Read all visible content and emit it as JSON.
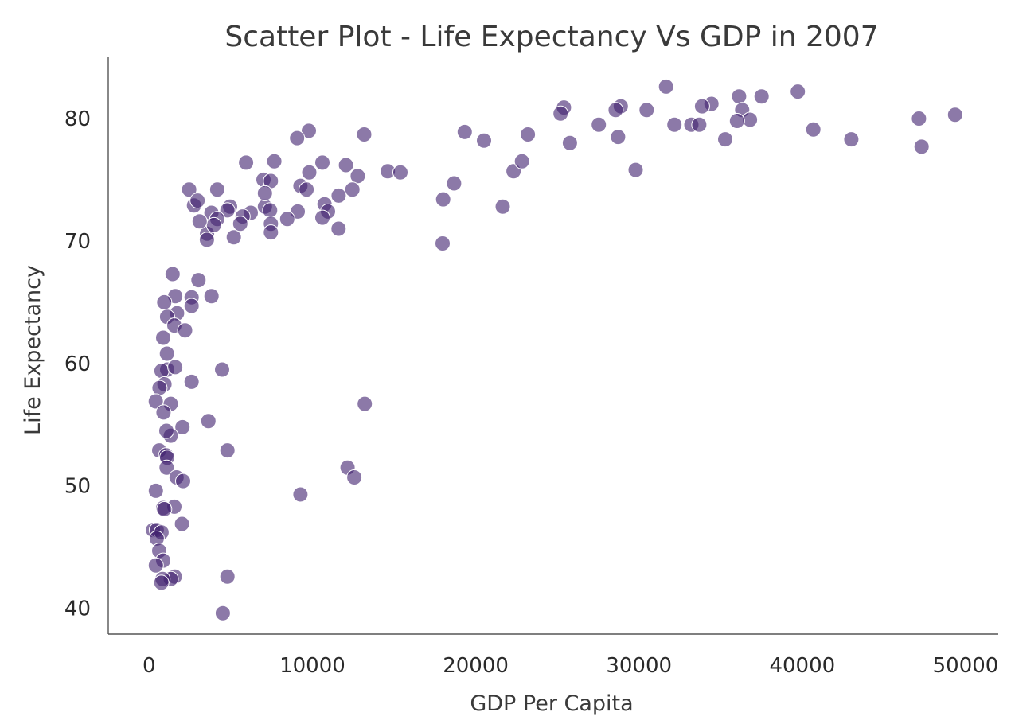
{
  "chart_data": {
    "type": "scatter",
    "title": "Scatter Plot - Life Expectancy Vs GDP in 2007",
    "xlabel": "GDP Per Capita",
    "ylabel": "Life Expectancy",
    "xlim": [
      -2500,
      52000
    ],
    "ylim": [
      37.9,
      85.0
    ],
    "xticks": [
      0,
      10000,
      20000,
      30000,
      40000,
      50000
    ],
    "yticks": [
      40,
      50,
      60,
      70,
      80
    ],
    "xtick_labels": [
      "0",
      "10000",
      "20000",
      "30000",
      "40000",
      "50000"
    ],
    "ytick_labels": [
      "40",
      "50",
      "60",
      "70",
      "80"
    ],
    "grid": false,
    "marker_color": "#3f1f6e",
    "points": [
      {
        "x": 31656,
        "y": 82.6
      },
      {
        "x": 39724,
        "y": 82.2
      },
      {
        "x": 36126,
        "y": 81.8
      },
      {
        "x": 37506,
        "y": 81.8
      },
      {
        "x": 34435,
        "y": 81.2
      },
      {
        "x": 33860,
        "y": 81.0
      },
      {
        "x": 28883,
        "y": 81.0
      },
      {
        "x": 25405,
        "y": 80.9
      },
      {
        "x": 36319,
        "y": 80.7
      },
      {
        "x": 30470,
        "y": 80.7
      },
      {
        "x": 28570,
        "y": 80.7
      },
      {
        "x": 25200,
        "y": 80.4
      },
      {
        "x": 49357,
        "y": 80.3
      },
      {
        "x": 47143,
        "y": 80.0
      },
      {
        "x": 36798,
        "y": 79.9
      },
      {
        "x": 36000,
        "y": 79.8
      },
      {
        "x": 33207,
        "y": 79.5
      },
      {
        "x": 33692,
        "y": 79.5
      },
      {
        "x": 32170,
        "y": 79.5
      },
      {
        "x": 27538,
        "y": 79.5
      },
      {
        "x": 40676,
        "y": 79.1
      },
      {
        "x": 19328,
        "y": 78.9
      },
      {
        "x": 23196,
        "y": 78.7
      },
      {
        "x": 28718,
        "y": 78.5
      },
      {
        "x": 43000,
        "y": 78.3
      },
      {
        "x": 35278,
        "y": 78.3
      },
      {
        "x": 20510,
        "y": 78.2
      },
      {
        "x": 25768,
        "y": 78.0
      },
      {
        "x": 47308,
        "y": 77.7
      },
      {
        "x": 29796,
        "y": 75.8
      },
      {
        "x": 22316,
        "y": 75.7
      },
      {
        "x": 22833,
        "y": 76.5
      },
      {
        "x": 14618,
        "y": 75.7
      },
      {
        "x": 15389,
        "y": 75.6
      },
      {
        "x": 18678,
        "y": 74.7
      },
      {
        "x": 18009,
        "y": 73.4
      },
      {
        "x": 21655,
        "y": 72.8
      },
      {
        "x": 17974,
        "y": 69.8
      },
      {
        "x": 9786,
        "y": 79.0
      },
      {
        "x": 9065,
        "y": 78.4
      },
      {
        "x": 13172,
        "y": 78.7
      },
      {
        "x": 10611,
        "y": 76.4
      },
      {
        "x": 12057,
        "y": 76.2
      },
      {
        "x": 7670,
        "y": 76.5
      },
      {
        "x": 5937,
        "y": 76.4
      },
      {
        "x": 9809,
        "y": 75.6
      },
      {
        "x": 12779,
        "y": 75.3
      },
      {
        "x": 7006,
        "y": 75.0
      },
      {
        "x": 7459,
        "y": 74.9
      },
      {
        "x": 9269,
        "y": 74.5
      },
      {
        "x": 9645,
        "y": 74.2
      },
      {
        "x": 12451,
        "y": 74.2
      },
      {
        "x": 11606,
        "y": 73.7
      },
      {
        "x": 10747,
        "y": 73.0
      },
      {
        "x": 7093,
        "y": 72.8
      },
      {
        "x": 7408,
        "y": 72.5
      },
      {
        "x": 9100,
        "y": 72.4
      },
      {
        "x": 10956,
        "y": 72.4
      },
      {
        "x": 6224,
        "y": 72.3
      },
      {
        "x": 5728,
        "y": 72.0
      },
      {
        "x": 8459,
        "y": 71.8
      },
      {
        "x": 10611,
        "y": 71.9
      },
      {
        "x": 7458,
        "y": 71.4
      },
      {
        "x": 11605,
        "y": 71.0
      },
      {
        "x": 7459,
        "y": 70.7
      },
      {
        "x": 7092,
        "y": 73.9
      },
      {
        "x": 5186,
        "y": 70.3
      },
      {
        "x": 4959,
        "y": 72.8
      },
      {
        "x": 5581,
        "y": 71.4
      },
      {
        "x": 4797,
        "y": 72.5
      },
      {
        "x": 4172,
        "y": 74.2
      },
      {
        "x": 2452,
        "y": 74.2
      },
      {
        "x": 2749,
        "y": 72.9
      },
      {
        "x": 3820,
        "y": 72.3
      },
      {
        "x": 4173,
        "y": 71.8
      },
      {
        "x": 3548,
        "y": 70.6
      },
      {
        "x": 3970,
        "y": 71.3
      },
      {
        "x": 3095,
        "y": 71.6
      },
      {
        "x": 3540,
        "y": 70.1
      },
      {
        "x": 2970,
        "y": 73.3
      },
      {
        "x": 1441,
        "y": 67.3
      },
      {
        "x": 3025,
        "y": 66.8
      },
      {
        "x": 3821,
        "y": 65.5
      },
      {
        "x": 1598,
        "y": 65.5
      },
      {
        "x": 926,
        "y": 65.0
      },
      {
        "x": 2605,
        "y": 65.4
      },
      {
        "x": 2605,
        "y": 64.7
      },
      {
        "x": 1713,
        "y": 64.1
      },
      {
        "x": 1102,
        "y": 63.8
      },
      {
        "x": 1544,
        "y": 63.1
      },
      {
        "x": 2202,
        "y": 62.7
      },
      {
        "x": 864,
        "y": 62.1
      },
      {
        "x": 1091,
        "y": 60.8
      },
      {
        "x": 1108,
        "y": 59.5
      },
      {
        "x": 760,
        "y": 59.4
      },
      {
        "x": 1598,
        "y": 59.7
      },
      {
        "x": 4471,
        "y": 59.5
      },
      {
        "x": 2602,
        "y": 58.5
      },
      {
        "x": 944,
        "y": 58.3
      },
      {
        "x": 641,
        "y": 58.0
      },
      {
        "x": 410,
        "y": 56.9
      },
      {
        "x": 1327,
        "y": 56.7
      },
      {
        "x": 13206,
        "y": 56.7
      },
      {
        "x": 884,
        "y": 56.0
      },
      {
        "x": 3633,
        "y": 55.3
      },
      {
        "x": 2042,
        "y": 54.8
      },
      {
        "x": 1327,
        "y": 54.1
      },
      {
        "x": 1059,
        "y": 54.5
      },
      {
        "x": 619,
        "y": 52.9
      },
      {
        "x": 4797,
        "y": 52.9
      },
      {
        "x": 1044,
        "y": 52.5
      },
      {
        "x": 1107,
        "y": 52.3
      },
      {
        "x": 1071,
        "y": 51.5
      },
      {
        "x": 12154,
        "y": 51.5
      },
      {
        "x": 12570,
        "y": 50.7
      },
      {
        "x": 1684,
        "y": 50.7
      },
      {
        "x": 2082,
        "y": 50.4
      },
      {
        "x": 415,
        "y": 49.6
      },
      {
        "x": 9270,
        "y": 49.3
      },
      {
        "x": 1544,
        "y": 48.3
      },
      {
        "x": 863,
        "y": 48.2
      },
      {
        "x": 926,
        "y": 48.1
      },
      {
        "x": 2014,
        "y": 46.9
      },
      {
        "x": 241,
        "y": 46.4
      },
      {
        "x": 470,
        "y": 46.4
      },
      {
        "x": 760,
        "y": 46.2
      },
      {
        "x": 470,
        "y": 45.7
      },
      {
        "x": 619,
        "y": 44.7
      },
      {
        "x": 863,
        "y": 43.9
      },
      {
        "x": 414,
        "y": 43.5
      },
      {
        "x": 4797,
        "y": 42.6
      },
      {
        "x": 1569,
        "y": 42.6
      },
      {
        "x": 1327,
        "y": 42.4
      },
      {
        "x": 823,
        "y": 42.4
      },
      {
        "x": 752,
        "y": 42.1
      },
      {
        "x": 4513,
        "y": 39.6
      }
    ]
  }
}
